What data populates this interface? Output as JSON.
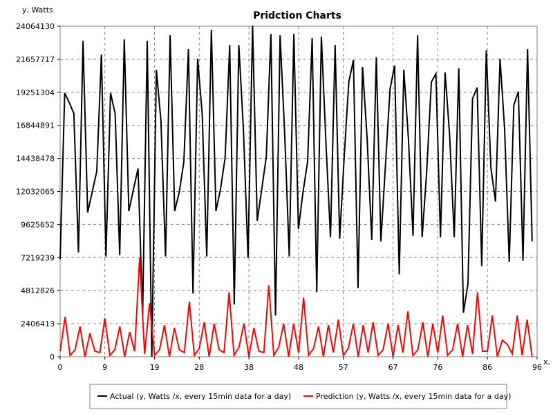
{
  "chart_data": {
    "type": "line",
    "title": "Pridction Charts",
    "xlabel": "x, e",
    "ylabel": "y, Watts",
    "xlim": [
      0,
      96
    ],
    "ylim": [
      0,
      24064130
    ],
    "x_ticks": [
      0,
      9,
      19,
      28,
      38,
      48,
      57,
      67,
      76,
      86,
      96
    ],
    "y_ticks": [
      0,
      2406413,
      4812826,
      7219239,
      9625652,
      12032065,
      14438478,
      16844891,
      19251304,
      21657717,
      24064130
    ],
    "grid": true,
    "legend_position": "bottom",
    "series": [
      {
        "name": "Actual (y, Watts /x, every 15min data for a day)",
        "color": "#000000",
        "values": [
          7100000,
          19200000,
          18500000,
          17700000,
          7600000,
          23000000,
          10500000,
          12000000,
          13500000,
          22000000,
          7300000,
          19200000,
          17700000,
          7400000,
          23100000,
          10600000,
          12200000,
          13700000,
          3000000,
          23000000,
          0,
          20900000,
          17200000,
          7300000,
          23400000,
          10600000,
          12000000,
          14200000,
          22400000,
          4600000,
          21700000,
          17700000,
          7300000,
          23800000,
          10600000,
          12200000,
          14500000,
          22700000,
          3800000,
          22700000,
          16500000,
          7200000,
          24100000,
          9900000,
          12200000,
          14600000,
          23500000,
          3000000,
          23400000,
          16300000,
          7300000,
          23500000,
          9300000,
          12000000,
          14200000,
          23200000,
          4700000,
          23300000,
          15600000,
          8700000,
          22700000,
          8600000,
          14600000,
          20000000,
          21600000,
          5000000,
          21100000,
          15800000,
          8500000,
          21800000,
          8400000,
          14000000,
          19500000,
          21200000,
          6000000,
          20900000,
          15900000,
          8800000,
          23400000,
          8700000,
          13500000,
          20000000,
          20600000,
          8700000,
          20700000,
          16100000,
          8700000,
          21000000,
          3200000,
          5300000,
          18800000,
          19600000,
          6600000,
          22300000,
          13800000,
          11300000,
          21700000,
          16600000,
          6900000,
          18300000,
          19300000,
          7000000,
          22400000,
          8400000
        ]
      },
      {
        "name": "Prediction (y, Watts /x, every 15min data for a day)",
        "color": "#ff0000",
        "values": [
          400000,
          2900000,
          100000,
          500000,
          2200000,
          0,
          1700000,
          400000,
          300000,
          2800000,
          100000,
          500000,
          2200000,
          0,
          1800000,
          400000,
          7200000,
          200000,
          3900000,
          100000,
          500000,
          2300000,
          0,
          2100000,
          500000,
          300000,
          4000000,
          100000,
          600000,
          2500000,
          0,
          2400000,
          500000,
          300000,
          4700000,
          100000,
          700000,
          2400000,
          0,
          2100000,
          400000,
          300000,
          5200000,
          100000,
          700000,
          2400000,
          0,
          2400000,
          300000,
          4300000,
          100000,
          600000,
          2200000,
          0,
          2300000,
          300000,
          2700000,
          100000,
          600000,
          2400000,
          0,
          2300000,
          300000,
          2500000,
          100000,
          500000,
          2400000,
          0,
          2300000,
          300000,
          3300000,
          100000,
          500000,
          2500000,
          0,
          2400000,
          300000,
          3000000,
          100000,
          500000,
          2400000,
          0,
          2300000,
          200000,
          4700000,
          400000,
          400000,
          3000000,
          0,
          1200000,
          900000,
          200000,
          3000000,
          100000,
          2700000,
          0
        ]
      }
    ]
  }
}
